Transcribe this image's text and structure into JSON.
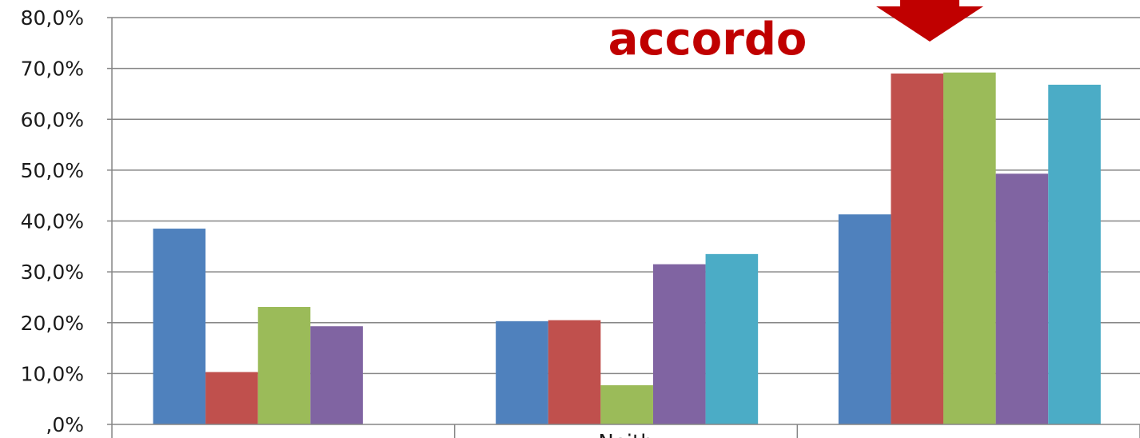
{
  "chart_data": {
    "type": "bar",
    "categories": [
      "",
      "Neith",
      ""
    ],
    "series": [
      {
        "color": "#4F81BD",
        "values": [
          38.5,
          20.3,
          41.3
        ]
      },
      {
        "color": "#C0504D",
        "values": [
          10.3,
          20.5,
          69.0
        ]
      },
      {
        "color": "#9BBB59",
        "values": [
          23.1,
          7.7,
          69.2
        ]
      },
      {
        "color": "#8064A2",
        "values": [
          19.3,
          31.5,
          49.3
        ]
      },
      {
        "color": "#4BACC6",
        "values": [
          null,
          33.5,
          66.8
        ]
      }
    ],
    "ylim": [
      0,
      80
    ],
    "yticks": [
      0,
      10,
      20,
      30,
      40,
      50,
      60,
      70,
      80
    ],
    "ytick_labels": [
      ",0%",
      "10,0%",
      "20,0%",
      "30,0%",
      "40,0%",
      "50,0%",
      "60,0%",
      "70,0%",
      "80,0%"
    ],
    "grid": true,
    "annotations": [
      {
        "text": "accordo",
        "color": "#C00000"
      }
    ],
    "arrow": {
      "color": "#C00000",
      "direction": "down"
    }
  }
}
